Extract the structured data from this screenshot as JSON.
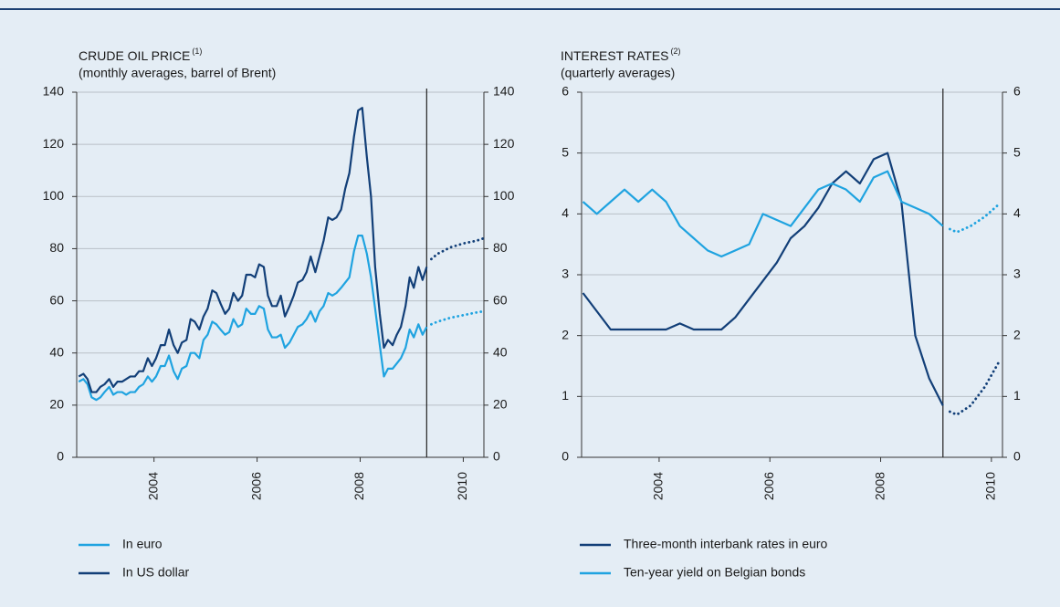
{
  "chart_data": [
    {
      "type": "line",
      "title": "CRUDE OIL PRICE",
      "title_note": "(1)",
      "subtitle": "(monthly averages, barrel of Brent)",
      "x": [
        2003.04,
        2003.13,
        2003.21,
        2003.29,
        2003.38,
        2003.46,
        2003.54,
        2003.63,
        2003.71,
        2003.79,
        2003.88,
        2003.96,
        2004.04,
        2004.13,
        2004.21,
        2004.29,
        2004.38,
        2004.46,
        2004.54,
        2004.63,
        2004.71,
        2004.79,
        2004.88,
        2004.96,
        2005.04,
        2005.13,
        2005.21,
        2005.29,
        2005.38,
        2005.46,
        2005.54,
        2005.63,
        2005.71,
        2005.79,
        2005.88,
        2005.96,
        2006.04,
        2006.13,
        2006.21,
        2006.29,
        2006.38,
        2006.46,
        2006.54,
        2006.63,
        2006.71,
        2006.79,
        2006.88,
        2006.96,
        2007.04,
        2007.13,
        2007.21,
        2007.29,
        2007.38,
        2007.46,
        2007.54,
        2007.63,
        2007.71,
        2007.79,
        2007.88,
        2007.96,
        2008.04,
        2008.13,
        2008.21,
        2008.29,
        2008.38,
        2008.46,
        2008.54,
        2008.63,
        2008.71,
        2008.79,
        2008.88,
        2008.96,
        2009.04,
        2009.13,
        2009.21,
        2009.29,
        2009.38,
        2009.46,
        2009.54,
        2009.63,
        2009.71,
        2009.79
      ],
      "forecast_x": [
        2009.88,
        2010.0,
        2010.25,
        2010.5,
        2010.75,
        2010.9
      ],
      "divider_x": 2009.79,
      "series": [
        {
          "name": "In euro",
          "color": "#1fa3e0",
          "values": [
            29,
            30,
            28,
            23,
            22,
            23,
            25,
            27,
            24,
            25,
            25,
            24,
            25,
            25,
            27,
            28,
            31,
            29,
            31,
            35,
            35,
            39,
            33,
            30,
            34,
            35,
            40,
            40,
            38,
            45,
            47,
            52,
            51,
            49,
            47,
            48,
            53,
            50,
            51,
            57,
            55,
            55,
            58,
            57,
            49,
            46,
            46,
            47,
            42,
            44,
            47,
            50,
            51,
            53,
            56,
            52,
            56,
            58,
            63,
            62,
            63,
            65,
            67,
            69,
            79,
            85,
            85,
            78,
            69,
            57,
            43,
            31,
            34,
            34,
            36,
            38,
            42,
            49,
            46,
            51,
            47,
            50
          ],
          "forecast_values": [
            51,
            52,
            53.5,
            54.5,
            55.5,
            56
          ]
        },
        {
          "name": "In US dollar",
          "color": "#123f78",
          "values": [
            31,
            32,
            30,
            25,
            25,
            27,
            28,
            30,
            27,
            29,
            29,
            30,
            31,
            31,
            33,
            33,
            38,
            35,
            38,
            43,
            43,
            49,
            43,
            40,
            44,
            45,
            53,
            52,
            49,
            54,
            57,
            64,
            63,
            59,
            55,
            57,
            63,
            60,
            62,
            70,
            70,
            69,
            74,
            73,
            62,
            58,
            58,
            62,
            54,
            58,
            62,
            67,
            68,
            71,
            77,
            71,
            77,
            83,
            92,
            91,
            92,
            95,
            103,
            109,
            123,
            133,
            134,
            115,
            100,
            73,
            55,
            42,
            45,
            43,
            47,
            50,
            58,
            69,
            65,
            73,
            68,
            73
          ],
          "forecast_values": [
            76,
            78,
            80.5,
            82,
            83,
            84
          ]
        }
      ],
      "xlim": [
        2003,
        2010.9
      ],
      "xticks": [
        {
          "value": 2004.5,
          "label": "2004"
        },
        {
          "value": 2006.5,
          "label": "2006"
        },
        {
          "value": 2008.5,
          "label": "2008"
        },
        {
          "value": 2010.5,
          "label": "2010"
        }
      ],
      "ylim": [
        0,
        140
      ],
      "yticks": [
        0,
        20,
        40,
        60,
        80,
        100,
        120,
        140
      ],
      "grid": true
    },
    {
      "type": "line",
      "title": "INTEREST RATES",
      "title_note": "(2)",
      "subtitle": "(quarterly averages)",
      "x": [
        2003.125,
        2003.375,
        2003.625,
        2003.875,
        2004.125,
        2004.375,
        2004.625,
        2004.875,
        2005.125,
        2005.375,
        2005.625,
        2005.875,
        2006.125,
        2006.375,
        2006.625,
        2006.875,
        2007.125,
        2007.375,
        2007.625,
        2007.875,
        2008.125,
        2008.375,
        2008.625,
        2008.875,
        2009.125,
        2009.375,
        2009.625
      ],
      "forecast_x": [
        2009.75,
        2009.875,
        2010.125,
        2010.375,
        2010.625
      ],
      "divider_x": 2009.625,
      "series": [
        {
          "name": "Three-month interbank rates in euro",
          "color": "#123f78",
          "values": [
            2.7,
            2.4,
            2.1,
            2.1,
            2.1,
            2.1,
            2.1,
            2.2,
            2.1,
            2.1,
            2.1,
            2.3,
            2.6,
            2.9,
            3.2,
            3.6,
            3.8,
            4.1,
            4.5,
            4.7,
            4.5,
            4.9,
            5.0,
            4.2,
            2.0,
            1.3,
            0.85
          ],
          "forecast_values": [
            0.75,
            0.7,
            0.85,
            1.15,
            1.55
          ]
        },
        {
          "name": "Ten-year yield on Belgian bonds",
          "color": "#1fa3e0",
          "values": [
            4.2,
            4.0,
            4.2,
            4.4,
            4.2,
            4.4,
            4.2,
            3.8,
            3.6,
            3.4,
            3.3,
            3.4,
            3.5,
            4.0,
            3.9,
            3.8,
            4.1,
            4.4,
            4.5,
            4.4,
            4.2,
            4.6,
            4.7,
            4.2,
            4.1,
            4.0,
            3.8
          ],
          "forecast_values": [
            3.75,
            3.7,
            3.8,
            3.95,
            4.15
          ]
        }
      ],
      "xlim": [
        2003.1,
        2010.7
      ],
      "xticks": [
        {
          "value": 2004.5,
          "label": "2004"
        },
        {
          "value": 2006.5,
          "label": "2006"
        },
        {
          "value": 2008.5,
          "label": "2008"
        },
        {
          "value": 2010.5,
          "label": "2010"
        }
      ],
      "ylim": [
        0,
        6
      ],
      "yticks": [
        0,
        1,
        2,
        3,
        4,
        5,
        6
      ],
      "grid": true
    }
  ]
}
